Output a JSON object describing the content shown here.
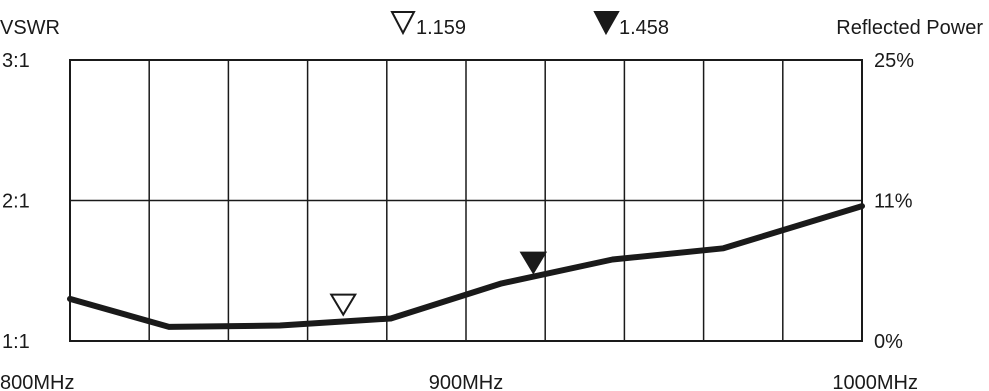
{
  "chart_data": {
    "type": "line",
    "title": "",
    "left_axis_label": "VSWR",
    "right_axis_label": "Reflected Power",
    "left_ticks": [
      {
        "label": "3:1",
        "value": 3
      },
      {
        "label": "2:1",
        "value": 2
      },
      {
        "label": "1:1",
        "value": 1
      }
    ],
    "right_ticks": [
      "25%",
      "11%",
      "0%"
    ],
    "x_ticks": [
      {
        "label": "800MHz",
        "value": 800
      },
      {
        "label": "900MHz",
        "value": 900
      },
      {
        "label": "1000MHz",
        "value": 1000
      }
    ],
    "xlim": [
      800,
      1000
    ],
    "ylim": [
      1,
      3
    ],
    "grid": true,
    "series": [
      {
        "x": [
          800,
          825,
          853,
          881,
          909,
          937,
          965,
          1000
        ],
        "y": [
          1.3,
          1.1,
          1.11,
          1.16,
          1.41,
          1.58,
          1.66,
          1.96
        ]
      }
    ],
    "markers": [
      {
        "style": "open",
        "label": "1.159",
        "x": 869,
        "y": 1.159
      },
      {
        "style": "filled",
        "label": "1.458",
        "x": 917,
        "y": 1.458
      }
    ]
  }
}
